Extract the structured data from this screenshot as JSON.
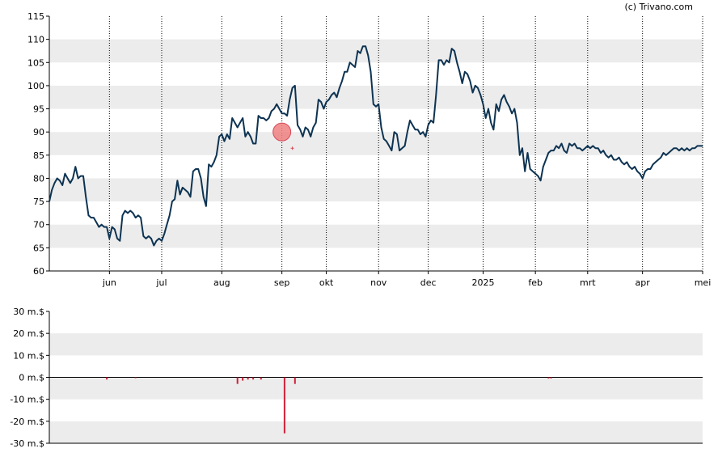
{
  "copyright": "(c) Trivano.com",
  "colors": {
    "background": "#ffffff",
    "band": "#ececec",
    "price_line": "#0d3352",
    "marker_fill": "#f08080",
    "marker_stroke": "#d84a5a",
    "volume_bar": "#d0203a",
    "axis": "#000000"
  },
  "chart_data": [
    {
      "type": "line",
      "title": "",
      "grid": true,
      "ylim": [
        60,
        115
      ],
      "y_ticks": [
        60,
        65,
        70,
        75,
        80,
        85,
        90,
        95,
        100,
        105,
        110,
        115
      ],
      "x_tick_labels": [
        "jun",
        "jul",
        "aug",
        "sep",
        "okt",
        "nov",
        "dec",
        "2025",
        "feb",
        "mrt",
        "apr",
        "mei"
      ],
      "x_range": [
        0,
        250
      ],
      "x_tick_positions": [
        23,
        43,
        66,
        89,
        106,
        126,
        145,
        166,
        186,
        206,
        227,
        250
      ],
      "series": [
        {
          "values": [
            [
              0,
              75
            ],
            [
              1,
              77.5
            ],
            [
              2,
              79
            ],
            [
              3,
              80
            ],
            [
              4,
              79.5
            ],
            [
              5,
              78.5
            ],
            [
              6,
              81
            ],
            [
              7,
              80
            ],
            [
              8,
              79
            ],
            [
              9,
              80
            ],
            [
              10,
              82.5
            ],
            [
              11,
              80
            ],
            [
              12,
              80.5
            ],
            [
              13,
              80.5
            ],
            [
              14,
              76
            ],
            [
              15,
              72
            ],
            [
              16,
              71.5
            ],
            [
              17,
              71.5
            ],
            [
              18,
              70.5
            ],
            [
              19,
              69.5
            ],
            [
              20,
              70
            ],
            [
              21,
              69.5
            ],
            [
              22,
              69.5
            ],
            [
              23,
              67
            ],
            [
              24,
              69.5
            ],
            [
              25,
              69
            ],
            [
              26,
              67
            ],
            [
              27,
              66.5
            ],
            [
              28,
              72
            ],
            [
              29,
              73
            ],
            [
              30,
              72.5
            ],
            [
              31,
              73
            ],
            [
              32,
              72.5
            ],
            [
              33,
              71.5
            ],
            [
              34,
              72
            ],
            [
              35,
              71.5
            ],
            [
              36,
              67.5
            ],
            [
              37,
              67
            ],
            [
              38,
              67.5
            ],
            [
              39,
              67
            ],
            [
              40,
              65.5
            ],
            [
              41,
              66.5
            ],
            [
              42,
              67
            ],
            [
              43,
              66.5
            ],
            [
              44,
              68
            ],
            [
              45,
              70
            ],
            [
              46,
              72
            ],
            [
              47,
              75
            ],
            [
              48,
              75.5
            ],
            [
              49,
              79.5
            ],
            [
              50,
              76.5
            ],
            [
              51,
              78
            ],
            [
              52,
              77.5
            ],
            [
              53,
              77
            ],
            [
              54,
              76
            ],
            [
              55,
              81.5
            ],
            [
              56,
              82
            ],
            [
              57,
              82
            ],
            [
              58,
              80
            ],
            [
              59,
              76
            ],
            [
              60,
              74
            ],
            [
              61,
              83
            ],
            [
              62,
              82.5
            ],
            [
              63,
              83.5
            ],
            [
              64,
              85
            ],
            [
              65,
              89
            ],
            [
              66,
              89.5
            ],
            [
              67,
              88
            ],
            [
              68,
              89.5
            ],
            [
              69,
              88.5
            ],
            [
              70,
              93
            ],
            [
              71,
              92
            ],
            [
              72,
              91
            ],
            [
              73,
              92
            ],
            [
              74,
              93
            ],
            [
              75,
              89
            ],
            [
              76,
              90
            ],
            [
              77,
              89
            ],
            [
              78,
              87.5
            ],
            [
              79,
              87.5
            ],
            [
              80,
              93.5
            ],
            [
              81,
              93
            ],
            [
              82,
              93
            ],
            [
              83,
              92.5
            ],
            [
              84,
              93
            ],
            [
              85,
              94.5
            ],
            [
              86,
              95
            ],
            [
              87,
              96
            ],
            [
              88,
              95
            ],
            [
              89,
              94
            ],
            [
              90,
              94
            ],
            [
              91,
              93.5
            ],
            [
              92,
              97
            ],
            [
              93,
              99.5
            ],
            [
              94,
              100
            ],
            [
              95,
              91.5
            ],
            [
              96,
              90.5
            ],
            [
              97,
              89
            ],
            [
              98,
              91
            ],
            [
              99,
              90.5
            ],
            [
              100,
              89
            ],
            [
              101,
              91
            ],
            [
              102,
              92
            ],
            [
              103,
              97
            ],
            [
              104,
              96.5
            ],
            [
              105,
              95
            ],
            [
              106,
              96.5
            ],
            [
              107,
              97
            ],
            [
              108,
              98
            ],
            [
              109,
              98.5
            ],
            [
              110,
              97.5
            ],
            [
              111,
              99.5
            ],
            [
              112,
              101
            ],
            [
              113,
              103
            ],
            [
              114,
              103
            ],
            [
              115,
              105
            ],
            [
              116,
              104.5
            ],
            [
              117,
              104
            ],
            [
              118,
              107.5
            ],
            [
              119,
              107
            ],
            [
              120,
              108.5
            ],
            [
              121,
              108.5
            ],
            [
              122,
              106.5
            ],
            [
              123,
              103
            ],
            [
              124,
              96
            ],
            [
              125,
              95.5
            ],
            [
              126,
              96
            ],
            [
              127,
              91
            ],
            [
              128,
              88.5
            ],
            [
              129,
              88
            ],
            [
              130,
              87
            ],
            [
              131,
              86
            ],
            [
              132,
              90
            ],
            [
              133,
              89.5
            ],
            [
              134,
              86
            ],
            [
              135,
              86.5
            ],
            [
              136,
              87
            ],
            [
              137,
              90
            ],
            [
              138,
              92.5
            ],
            [
              139,
              91.5
            ],
            [
              140,
              90.5
            ],
            [
              141,
              90.5
            ],
            [
              142,
              89.5
            ],
            [
              143,
              90
            ],
            [
              144,
              89
            ],
            [
              145,
              91.5
            ],
            [
              146,
              92.5
            ],
            [
              147,
              92
            ],
            [
              148,
              98
            ],
            [
              149,
              105.5
            ],
            [
              150,
              105.5
            ],
            [
              151,
              104.5
            ],
            [
              152,
              105.5
            ],
            [
              153,
              105
            ],
            [
              154,
              108
            ],
            [
              155,
              107.5
            ],
            [
              156,
              105
            ],
            [
              157,
              103
            ],
            [
              158,
              100.5
            ],
            [
              159,
              103
            ],
            [
              160,
              102.5
            ],
            [
              161,
              101
            ],
            [
              162,
              98.5
            ],
            [
              163,
              100
            ],
            [
              164,
              99.5
            ],
            [
              165,
              98
            ],
            [
              166,
              96
            ],
            [
              167,
              93
            ],
            [
              168,
              95
            ],
            [
              169,
              92
            ],
            [
              170,
              90.5
            ],
            [
              171,
              96
            ],
            [
              172,
              94.5
            ],
            [
              173,
              97
            ],
            [
              174,
              98
            ],
            [
              175,
              96.5
            ],
            [
              176,
              95.5
            ],
            [
              177,
              94
            ],
            [
              178,
              95
            ],
            [
              179,
              92
            ],
            [
              180,
              85
            ],
            [
              181,
              86.5
            ],
            [
              182,
              81.5
            ],
            [
              183,
              85.5
            ],
            [
              184,
              82
            ],
            [
              185,
              81.5
            ],
            [
              186,
              81
            ],
            [
              187,
              80.5
            ],
            [
              188,
              79.5
            ],
            [
              189,
              82.5
            ],
            [
              190,
              84
            ],
            [
              191,
              85.5
            ],
            [
              192,
              86
            ],
            [
              193,
              86
            ],
            [
              194,
              87
            ],
            [
              195,
              86.5
            ],
            [
              196,
              87.5
            ],
            [
              197,
              86
            ],
            [
              198,
              85.5
            ],
            [
              199,
              87.5
            ],
            [
              200,
              87
            ],
            [
              201,
              87.5
            ],
            [
              202,
              86.5
            ],
            [
              203,
              86.5
            ],
            [
              204,
              86
            ],
            [
              205,
              86.5
            ],
            [
              206,
              87
            ],
            [
              207,
              86.5
            ],
            [
              208,
              87
            ],
            [
              209,
              86.5
            ],
            [
              210,
              86.5
            ],
            [
              211,
              85.5
            ],
            [
              212,
              86
            ],
            [
              213,
              85
            ],
            [
              214,
              84.5
            ],
            [
              215,
              85
            ],
            [
              216,
              84
            ],
            [
              217,
              84
            ],
            [
              218,
              84.5
            ],
            [
              219,
              83.5
            ],
            [
              220,
              83
            ],
            [
              221,
              83.5
            ],
            [
              222,
              82.5
            ],
            [
              223,
              82
            ],
            [
              224,
              82.5
            ],
            [
              225,
              81.5
            ],
            [
              226,
              81
            ],
            [
              227,
              80
            ],
            [
              228,
              81.5
            ],
            [
              229,
              82
            ],
            [
              230,
              82
            ],
            [
              231,
              83
            ],
            [
              232,
              83.5
            ],
            [
              233,
              84
            ],
            [
              234,
              84.5
            ],
            [
              235,
              85.5
            ],
            [
              236,
              85
            ],
            [
              237,
              85.5
            ],
            [
              238,
              86
            ],
            [
              239,
              86.5
            ],
            [
              240,
              86.5
            ],
            [
              241,
              86
            ],
            [
              242,
              86.5
            ],
            [
              243,
              86
            ],
            [
              244,
              86.5
            ],
            [
              245,
              86
            ],
            [
              246,
              86.5
            ],
            [
              247,
              86.5
            ],
            [
              248,
              87
            ],
            [
              249,
              87
            ],
            [
              250,
              87
            ]
          ]
        }
      ],
      "markers": [
        {
          "x": 89,
          "y": 90,
          "kind": "circle"
        },
        {
          "x": 93,
          "y": 86.5,
          "kind": "small-plus"
        }
      ]
    },
    {
      "type": "bar",
      "title": "",
      "grid": true,
      "ylim": [
        -30,
        30
      ],
      "y_ticks": [
        -30,
        -20,
        -10,
        0,
        10,
        20,
        30
      ],
      "y_tick_labels": [
        "-30 m.$",
        "-20 m.$",
        "-10 m.$",
        "0 m.$",
        "10 m.$",
        "20 m.$",
        "30 m.$"
      ],
      "x_range": [
        0,
        250
      ],
      "bars": [
        {
          "x": 22,
          "value": -1
        },
        {
          "x": 33,
          "value": -0.3
        },
        {
          "x": 72,
          "value": -3
        },
        {
          "x": 74,
          "value": -1.5
        },
        {
          "x": 76,
          "value": -1
        },
        {
          "x": 78,
          "value": -1
        },
        {
          "x": 81,
          "value": -1
        },
        {
          "x": 90,
          "value": -25.5
        },
        {
          "x": 94,
          "value": -3
        },
        {
          "x": 191,
          "value": -0.5
        },
        {
          "x": 192,
          "value": -0.5
        }
      ]
    }
  ]
}
